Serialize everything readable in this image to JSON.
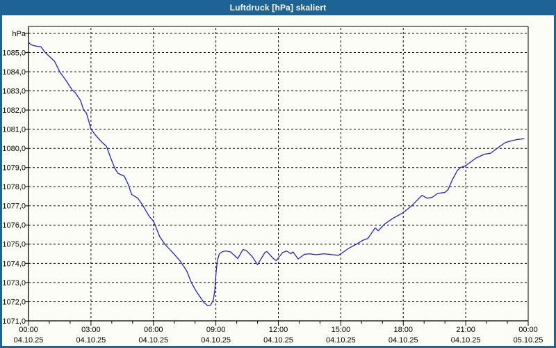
{
  "window": {
    "title": "Luftdruck [hPa] skaliert"
  },
  "colors": {
    "frame": "#1e6396",
    "title_text": "#ffffff",
    "content_bg": "#fbfdf6",
    "plot_border": "#000000",
    "gridline": "#000000",
    "tick_text": "#000000",
    "series_line": "#2121cd"
  },
  "chart_data": {
    "type": "line",
    "title": "Luftdruck [hPa] skaliert",
    "grid": "dashed, horizontal every 1 hPa, vertical every 3 h",
    "legend_position": "none",
    "y_axis": {
      "unit_label": "hPa",
      "min": 1071,
      "max": 1086,
      "tick_step": 1,
      "tick_labels": [
        "1071,0",
        "1072,0",
        "1073,0",
        "1074,0",
        "1075,0",
        "1076,0",
        "1077,0",
        "1078,0",
        "1079,0",
        "1080,0",
        "1081,0",
        "1082,0",
        "1083,0",
        "1084,0",
        "1085,0"
      ]
    },
    "x_axis": {
      "range_hours": [
        0,
        24
      ],
      "minor_tick_hours": 1,
      "major_tick_hours": 3,
      "ticks": [
        {
          "hour": 0,
          "time": "00:00",
          "date": "04.10.25"
        },
        {
          "hour": 3,
          "time": "03:00",
          "date": "04.10.25"
        },
        {
          "hour": 6,
          "time": "06:00",
          "date": "04.10.25"
        },
        {
          "hour": 9,
          "time": "09:00",
          "date": "04.10.25"
        },
        {
          "hour": 12,
          "time": "12:00",
          "date": "04.10.25"
        },
        {
          "hour": 15,
          "time": "15:00",
          "date": "04.10.25"
        },
        {
          "hour": 18,
          "time": "18:00",
          "date": "04.10.25"
        },
        {
          "hour": 21,
          "time": "21:00",
          "date": "04.10.25"
        },
        {
          "hour": 24,
          "time": "00:00",
          "date": "05.10.25"
        }
      ]
    },
    "series": [
      {
        "name": "Luftdruck [hPa] skaliert",
        "color": "#2121cd",
        "points_hour_hpa": [
          [
            0.0,
            1085.55
          ],
          [
            0.1,
            1085.42
          ],
          [
            0.3,
            1085.35
          ],
          [
            0.6,
            1085.3
          ],
          [
            0.8,
            1085.0
          ],
          [
            1.0,
            1084.8
          ],
          [
            1.25,
            1084.55
          ],
          [
            1.5,
            1084.0
          ],
          [
            1.8,
            1083.55
          ],
          [
            2.1,
            1083.05
          ],
          [
            2.25,
            1082.9
          ],
          [
            2.5,
            1082.5
          ],
          [
            2.65,
            1082.0
          ],
          [
            2.78,
            1081.85
          ],
          [
            2.9,
            1081.4
          ],
          [
            3.0,
            1081.0
          ],
          [
            3.25,
            1080.65
          ],
          [
            3.5,
            1080.35
          ],
          [
            3.75,
            1080.1
          ],
          [
            3.95,
            1079.5
          ],
          [
            4.15,
            1078.95
          ],
          [
            4.3,
            1078.7
          ],
          [
            4.6,
            1078.55
          ],
          [
            4.8,
            1078.1
          ],
          [
            4.95,
            1077.6
          ],
          [
            5.25,
            1077.4
          ],
          [
            5.5,
            1077.0
          ],
          [
            5.8,
            1076.45
          ],
          [
            6.0,
            1076.2
          ],
          [
            6.1,
            1075.95
          ],
          [
            6.3,
            1075.4
          ],
          [
            6.55,
            1075.0
          ],
          [
            6.9,
            1074.6
          ],
          [
            7.3,
            1074.1
          ],
          [
            7.6,
            1073.6
          ],
          [
            7.82,
            1073.0
          ],
          [
            8.05,
            1072.55
          ],
          [
            8.27,
            1072.2
          ],
          [
            8.43,
            1071.95
          ],
          [
            8.6,
            1071.8
          ],
          [
            8.75,
            1071.82
          ],
          [
            8.88,
            1072.1
          ],
          [
            8.95,
            1072.6
          ],
          [
            9.0,
            1073.4
          ],
          [
            9.07,
            1074.15
          ],
          [
            9.17,
            1074.5
          ],
          [
            9.3,
            1074.6
          ],
          [
            9.45,
            1074.65
          ],
          [
            9.7,
            1074.6
          ],
          [
            10.05,
            1074.25
          ],
          [
            10.3,
            1074.72
          ],
          [
            10.45,
            1074.68
          ],
          [
            10.75,
            1074.35
          ],
          [
            11.0,
            1073.93
          ],
          [
            11.35,
            1074.56
          ],
          [
            11.45,
            1074.62
          ],
          [
            11.75,
            1074.26
          ],
          [
            11.9,
            1074.14
          ],
          [
            12.2,
            1074.56
          ],
          [
            12.4,
            1074.65
          ],
          [
            12.6,
            1074.5
          ],
          [
            12.7,
            1074.6
          ],
          [
            12.95,
            1074.23
          ],
          [
            13.25,
            1074.47
          ],
          [
            13.5,
            1074.5
          ],
          [
            13.8,
            1074.45
          ],
          [
            14.2,
            1074.5
          ],
          [
            14.6,
            1074.45
          ],
          [
            14.9,
            1074.42
          ],
          [
            15.0,
            1074.5
          ],
          [
            15.4,
            1074.8
          ],
          [
            15.75,
            1075.0
          ],
          [
            16.05,
            1075.2
          ],
          [
            16.3,
            1075.3
          ],
          [
            16.65,
            1075.85
          ],
          [
            16.8,
            1075.7
          ],
          [
            17.1,
            1076.05
          ],
          [
            17.5,
            1076.35
          ],
          [
            18.0,
            1076.65
          ],
          [
            18.4,
            1077.0
          ],
          [
            18.9,
            1077.55
          ],
          [
            19.15,
            1077.4
          ],
          [
            19.4,
            1077.45
          ],
          [
            19.65,
            1077.65
          ],
          [
            20.0,
            1077.7
          ],
          [
            20.15,
            1077.85
          ],
          [
            20.35,
            1078.35
          ],
          [
            20.6,
            1078.85
          ],
          [
            20.75,
            1079.0
          ],
          [
            21.0,
            1079.1
          ],
          [
            21.5,
            1079.5
          ],
          [
            21.9,
            1079.7
          ],
          [
            22.2,
            1079.75
          ],
          [
            22.5,
            1080.0
          ],
          [
            22.9,
            1080.3
          ],
          [
            23.2,
            1080.4
          ],
          [
            23.5,
            1080.47
          ],
          [
            23.8,
            1080.5
          ]
        ]
      }
    ]
  }
}
